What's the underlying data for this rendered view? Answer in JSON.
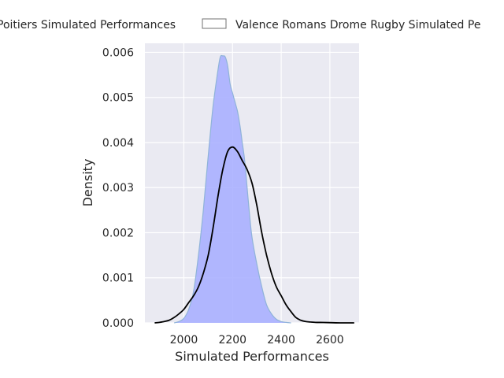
{
  "chart_data": {
    "type": "area",
    "xlabel": "Simulated Performances",
    "ylabel": "Density",
    "xlim": [
      1840,
      2720
    ],
    "ylim": [
      0,
      0.0062
    ],
    "x_ticks": [
      2000,
      2200,
      2400,
      2600
    ],
    "x_tick_labels": [
      "2000",
      "2200",
      "2400",
      "2600"
    ],
    "y_ticks": [
      0,
      0.001,
      0.002,
      0.003,
      0.004,
      0.005,
      0.006
    ],
    "y_tick_labels": [
      "0.000",
      "0.001",
      "0.002",
      "0.003",
      "0.004",
      "0.005",
      "0.006"
    ],
    "grid": true,
    "legend_position": "top",
    "series": [
      {
        "name": "Stade Poitevin Rugby Poitiers Simulated Performances",
        "legend_label": "Poitiers Simulated Performances",
        "style": "filled",
        "fill_color": "#aab0ff",
        "edge_color": "#8fb3d9",
        "x": [
          1960,
          1980,
          2000,
          2020,
          2040,
          2060,
          2080,
          2100,
          2120,
          2140,
          2150,
          2160,
          2170,
          2180,
          2190,
          2200,
          2210,
          2220,
          2230,
          2240,
          2250,
          2260,
          2270,
          2280,
          2300,
          2320,
          2340,
          2360,
          2380,
          2400,
          2420,
          2440
        ],
        "y": [
          0.0,
          3e-05,
          0.0001,
          0.0003,
          0.0007,
          0.0015,
          0.0025,
          0.0037,
          0.0048,
          0.0056,
          0.0059,
          0.00592,
          0.0059,
          0.0057,
          0.0053,
          0.0051,
          0.0049,
          0.0047,
          0.0044,
          0.004,
          0.0036,
          0.003,
          0.0024,
          0.0019,
          0.0013,
          0.0008,
          0.0004,
          0.0002,
          8e-05,
          3e-05,
          1e-05,
          0.0
        ]
      },
      {
        "name": "Valence Romans Drome Rugby Simulated Performances",
        "legend_label": "Valence Romans Drome Rugby Simulated Pe",
        "style": "outline",
        "fill_color": "#ffffff",
        "edge_color": "#000000",
        "x": [
          1880,
          1900,
          1920,
          1940,
          1960,
          1980,
          2000,
          2020,
          2040,
          2060,
          2080,
          2100,
          2120,
          2140,
          2160,
          2180,
          2200,
          2220,
          2240,
          2260,
          2280,
          2300,
          2320,
          2340,
          2360,
          2380,
          2400,
          2420,
          2440,
          2460,
          2480,
          2500,
          2520,
          2540,
          2560,
          2600,
          2650,
          2700
        ],
        "y": [
          0.0,
          1e-05,
          3e-05,
          6e-05,
          0.00012,
          0.0002,
          0.0003,
          0.00045,
          0.0006,
          0.0008,
          0.0011,
          0.0015,
          0.0021,
          0.0028,
          0.0034,
          0.0038,
          0.0039,
          0.0038,
          0.0036,
          0.0034,
          0.0031,
          0.0026,
          0.002,
          0.0015,
          0.0011,
          0.0008,
          0.0006,
          0.0004,
          0.00025,
          0.00012,
          6e-05,
          3e-05,
          2e-05,
          1e-05,
          1e-05,
          5e-06,
          0.0,
          0.0
        ]
      }
    ]
  }
}
